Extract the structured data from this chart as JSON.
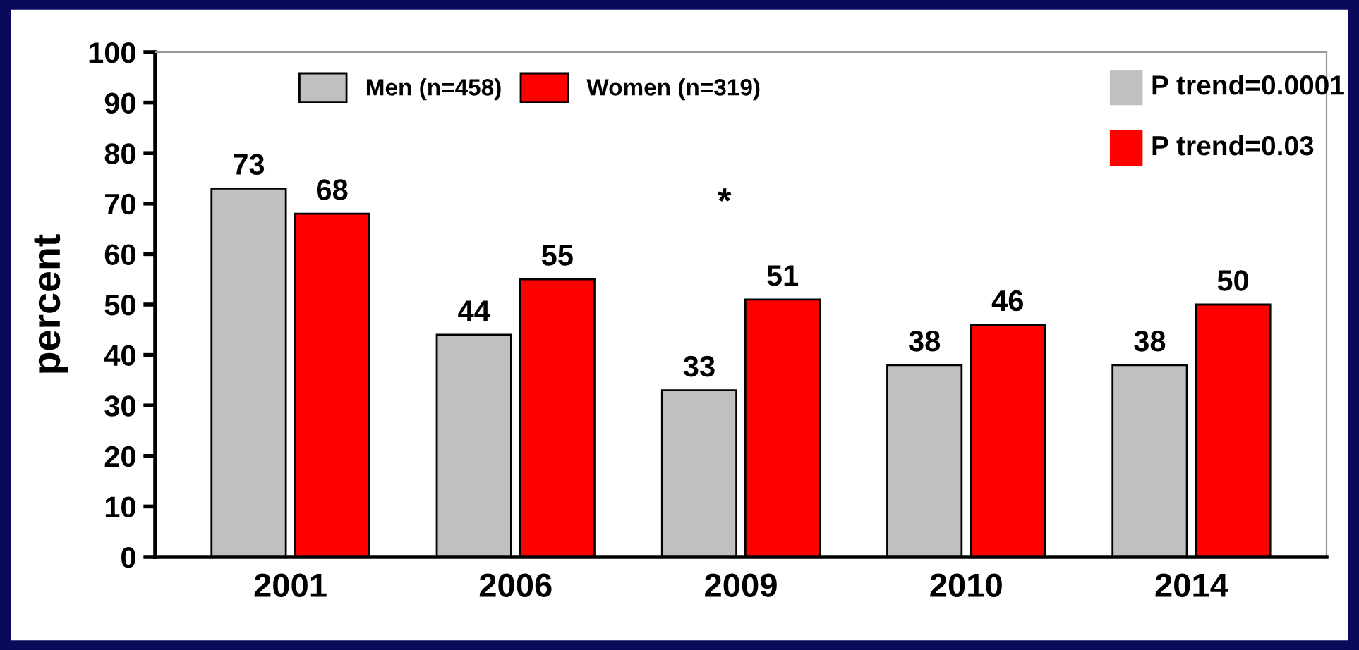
{
  "chart_data": {
    "type": "bar",
    "ylabel": "percent",
    "categories": [
      "2001",
      "2006",
      "2009",
      "2010",
      "2014"
    ],
    "series": [
      {
        "name": "Men (n=458)",
        "color": "#c0c0c0",
        "values": [
          73,
          44,
          33,
          38,
          38
        ]
      },
      {
        "name": "Women (n=319)",
        "color": "#ff0000",
        "values": [
          68,
          55,
          51,
          46,
          50
        ]
      }
    ],
    "ylim": [
      0,
      100
    ],
    "yticks": [
      0,
      10,
      20,
      30,
      40,
      50,
      60,
      70,
      80,
      90,
      100
    ],
    "data_labels": true,
    "grid": false,
    "legend": "top",
    "annotations": [
      "P trend=0.0001",
      "P trend=0.03",
      "*"
    ]
  }
}
